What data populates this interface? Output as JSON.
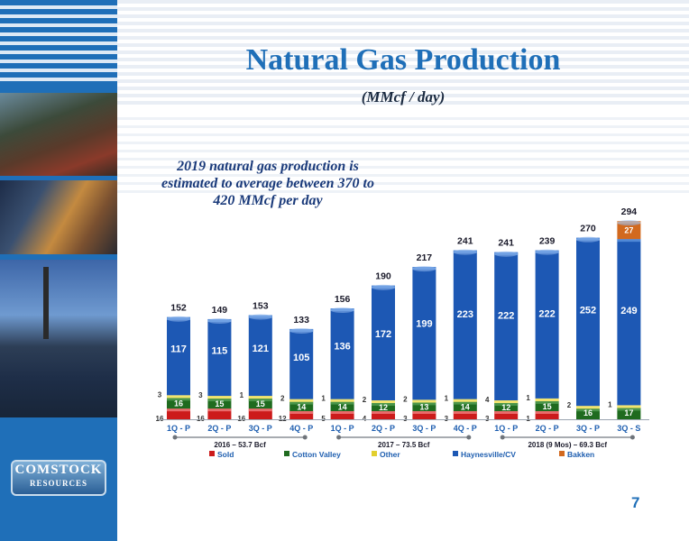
{
  "slide": {
    "title": "Natural Gas Production",
    "subtitle": "(MMcf / day)",
    "note": "2019 natural gas production is estimated to average between 370 to 420 MMcf  per day",
    "page_number": "7",
    "logo_line1": "COMSTOCK",
    "logo_line2": "RESOURCES"
  },
  "colors": {
    "Sold": "#cc1b1b",
    "Cotton Valley": "#1f6b1f",
    "Other": "#e2cf2e",
    "Haynesville/CV": "#1d58b4",
    "Bakken": "#d2691e",
    "accent": "#1f6fb8"
  },
  "chart_data": {
    "type": "bar",
    "stacked": true,
    "categories": [
      "1Q - P",
      "2Q - P",
      "3Q - P",
      "4Q - P",
      "1Q - P",
      "2Q - P",
      "3Q - P",
      "4Q - P",
      "1Q - P",
      "2Q - P",
      "3Q - P",
      "3Q - S"
    ],
    "series": [
      {
        "name": "Sold",
        "values": [
          16,
          16,
          16,
          12,
          5,
          4,
          3,
          3,
          3,
          1,
          0,
          0
        ]
      },
      {
        "name": "Cotton Valley",
        "values": [
          16,
          15,
          15,
          14,
          14,
          12,
          13,
          14,
          12,
          15,
          16,
          17
        ]
      },
      {
        "name": "Other",
        "values": [
          3,
          3,
          1,
          2,
          1,
          2,
          2,
          1,
          4,
          1,
          2,
          1
        ]
      },
      {
        "name": "Haynesville/CV",
        "values": [
          117,
          115,
          121,
          105,
          136,
          172,
          199,
          223,
          222,
          222,
          252,
          249
        ]
      },
      {
        "name": "Bakken",
        "values": [
          0,
          0,
          0,
          0,
          0,
          0,
          0,
          0,
          0,
          0,
          0,
          27
        ]
      }
    ],
    "totals": [
      152,
      149,
      153,
      133,
      156,
      190,
      217,
      241,
      241,
      239,
      270,
      294
    ],
    "groups": [
      {
        "label": "2016 – 53.7 Bcf",
        "start": 0,
        "end": 3
      },
      {
        "label": "2017 – 73.5 Bcf",
        "start": 4,
        "end": 7
      },
      {
        "label": "2018 (9 Mos) – 69.3 Bcf",
        "start": 8,
        "end": 11
      }
    ],
    "ylim": [
      0,
      300
    ],
    "legend_position": "bottom",
    "grid": false
  }
}
